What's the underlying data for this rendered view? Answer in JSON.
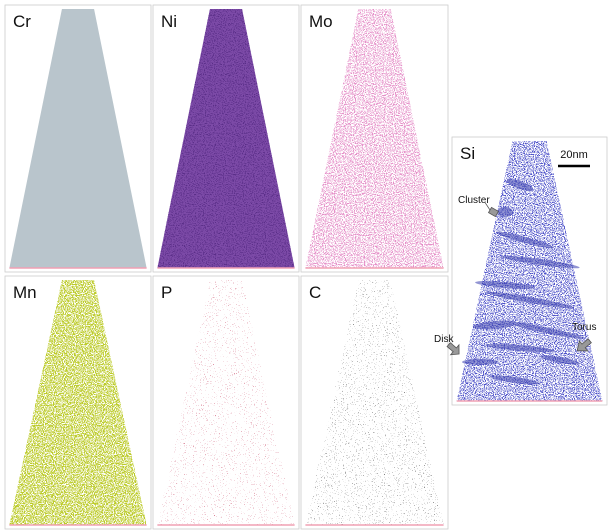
{
  "panels": [
    {
      "label": "Cr"
    },
    {
      "label": "Ni"
    },
    {
      "label": "Mo"
    },
    {
      "label": "Mn"
    },
    {
      "label": "P"
    },
    {
      "label": "C"
    },
    {
      "label": "Si"
    }
  ],
  "scale_bar": "20nm",
  "annotations": [
    "Cluster",
    "Disk",
    "Torus"
  ]
}
